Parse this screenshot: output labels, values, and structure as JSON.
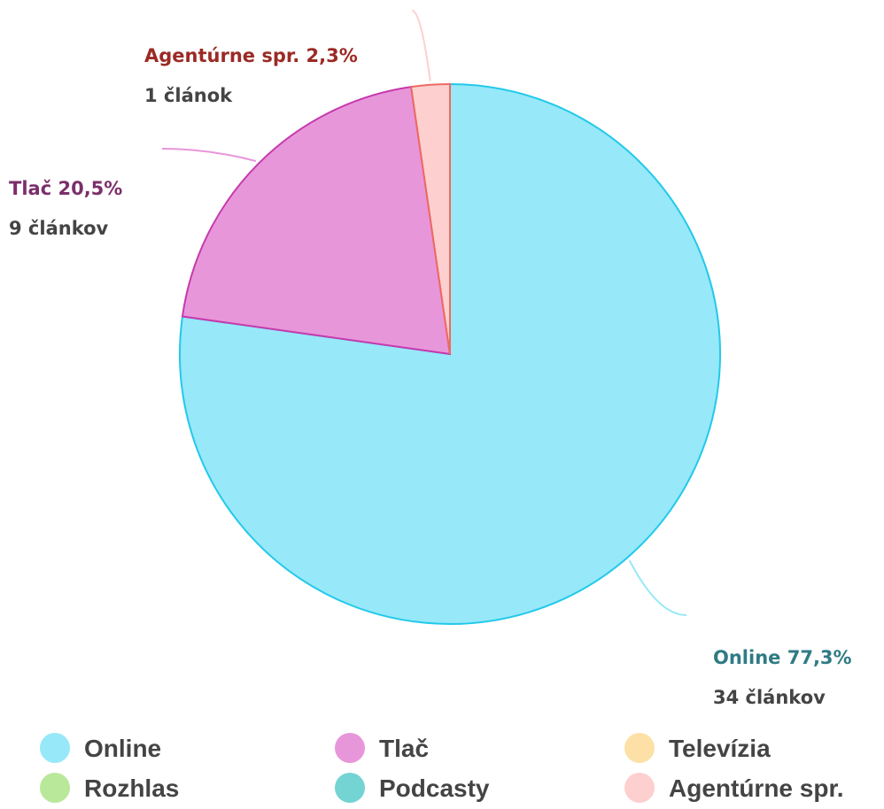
{
  "chart_data": {
    "type": "pie",
    "categories": [
      "Online",
      "Tlač",
      "Televízia",
      "Rozhlas",
      "Podcasty",
      "Agentúrne spr."
    ],
    "values": [
      77.3,
      20.5,
      0,
      0,
      0,
      2.3
    ],
    "value_labels": [
      "77,3%",
      "20,5%",
      null,
      null,
      null,
      "2,3%"
    ],
    "counts": [
      34,
      9,
      0,
      0,
      0,
      1
    ],
    "count_labels": [
      "34 článkov",
      "9 článkov",
      null,
      null,
      null,
      "1 článok"
    ],
    "colors": [
      "#97e8f9",
      "#e896da",
      "#fde0a6",
      "#b9e89a",
      "#74d3d3",
      "#fdd0cf"
    ],
    "stroke_colors": [
      "#22c9ea",
      "#c63aae",
      "#f5c25c",
      "#7cc850",
      "#2fb3b3",
      "#ee6a60"
    ],
    "label_colors": [
      "#2f7b84",
      "#7a2f6a",
      "#8a6a20",
      "#3f7a20",
      "#1f7a7a",
      "#9b2a25"
    ],
    "legend": "bottom"
  }
}
